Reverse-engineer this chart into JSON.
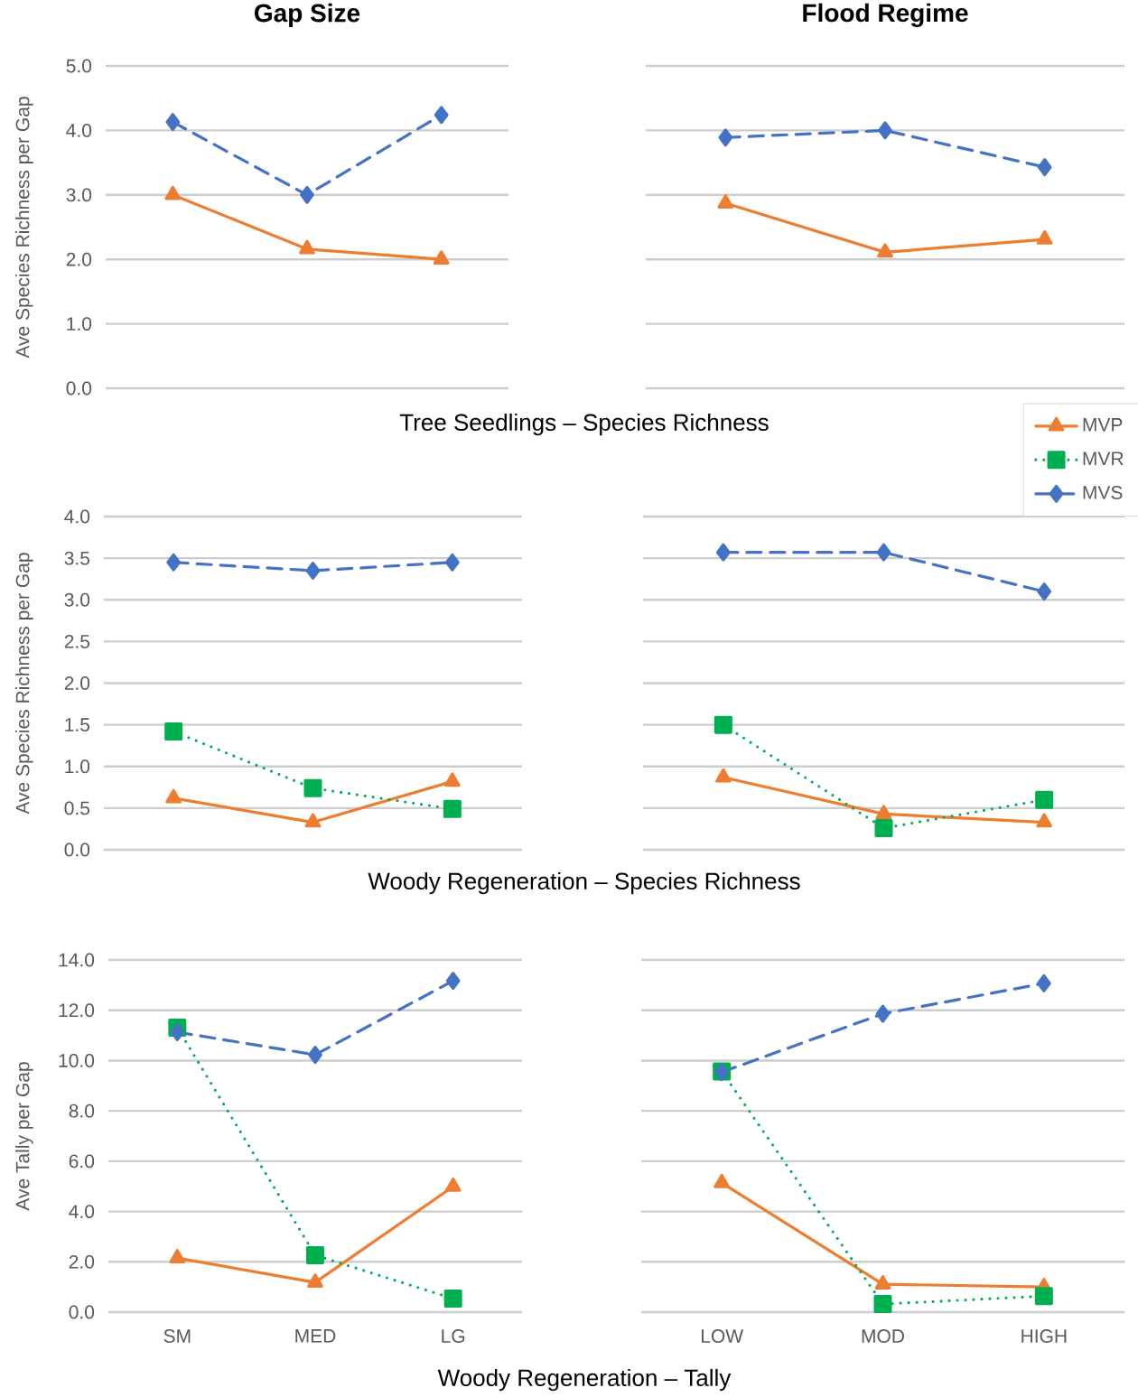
{
  "chart_data": [
    {
      "type": "line",
      "title": "Gap Size",
      "xlabel": "Tree Seedlings – Species Richness",
      "ylabel": "Ave Species Richness per Gap",
      "categories": [
        "SM",
        "MED",
        "LG"
      ],
      "ylim": [
        0,
        5
      ],
      "yticks": [
        {
          "value": 0,
          "label": "0.0"
        },
        {
          "value": 1,
          "label": "1.0"
        },
        {
          "value": 2,
          "label": "2.0"
        },
        {
          "value": 3,
          "label": "3.0"
        },
        {
          "value": 4,
          "label": "4.0"
        },
        {
          "value": 5,
          "label": "5.0"
        }
      ],
      "grid": "y",
      "tick_labels": "y",
      "series": [
        {
          "name": "MVP",
          "color": "#ed7d31",
          "marker": "triangle",
          "line_style": "solid",
          "values": [
            3.0,
            2.16,
            2.0
          ]
        },
        {
          "name": "MVS",
          "color": "#4472c4",
          "marker": "diamond",
          "line_style": "dashed",
          "values": [
            4.13,
            3.0,
            4.24
          ]
        }
      ]
    },
    {
      "type": "line",
      "title": "Flood Regime",
      "categories": [
        "LOW",
        "MOD",
        "HIGH"
      ],
      "ylim": [
        0,
        5
      ],
      "yticks": [
        {
          "value": 0,
          "label": null
        },
        {
          "value": 1,
          "label": null
        },
        {
          "value": 2,
          "label": null
        },
        {
          "value": 3,
          "label": null
        },
        {
          "value": 4,
          "label": null
        },
        {
          "value": 5,
          "label": null
        }
      ],
      "grid": "y",
      "tick_labels": false,
      "series": [
        {
          "name": "MVP",
          "color": "#ed7d31",
          "marker": "triangle",
          "line_style": "solid",
          "values": [
            2.87,
            2.11,
            2.31
          ]
        },
        {
          "name": "MVS",
          "color": "#4472c4",
          "marker": "diamond",
          "line_style": "dashed",
          "values": [
            3.89,
            4.0,
            3.43
          ]
        }
      ]
    },
    {
      "type": "line",
      "xlabel": "Woody Regeneration – Species Richness",
      "ylabel": "Ave Species Richness per Gap",
      "categories": [
        "SM",
        "MED",
        "LG"
      ],
      "ylim": [
        0,
        4
      ],
      "yticks": [
        {
          "value": 0,
          "label": "0.0"
        },
        {
          "value": 0.5,
          "label": "0.5"
        },
        {
          "value": 1,
          "label": "1.0"
        },
        {
          "value": 1.5,
          "label": "1.5"
        },
        {
          "value": 2,
          "label": "2.0"
        },
        {
          "value": 2.5,
          "label": "2.5"
        },
        {
          "value": 3,
          "label": "3.0"
        },
        {
          "value": 3.5,
          "label": "3.5"
        },
        {
          "value": 4,
          "label": "4.0"
        }
      ],
      "grid": "y",
      "tick_labels": "y",
      "series": [
        {
          "name": "MVP",
          "color": "#ed7d31",
          "marker": "triangle",
          "line_style": "solid",
          "values": [
            0.62,
            0.33,
            0.82
          ]
        },
        {
          "name": "MVR",
          "color": "#00b050",
          "marker": "square",
          "line_style": "dotted",
          "values": [
            1.42,
            0.74,
            0.49
          ]
        },
        {
          "name": "MVS",
          "color": "#4472c4",
          "marker": "diamond",
          "line_style": "dashed",
          "values": [
            3.45,
            3.35,
            3.45
          ]
        }
      ]
    },
    {
      "type": "line",
      "categories": [
        "LOW",
        "MOD",
        "HIGH"
      ],
      "ylim": [
        0,
        4
      ],
      "yticks": [
        {
          "value": 0,
          "label": null
        },
        {
          "value": 0.5,
          "label": null
        },
        {
          "value": 1,
          "label": null
        },
        {
          "value": 1.5,
          "label": null
        },
        {
          "value": 2,
          "label": null
        },
        {
          "value": 2.5,
          "label": null
        },
        {
          "value": 3,
          "label": null
        },
        {
          "value": 3.5,
          "label": null
        },
        {
          "value": 4,
          "label": null
        }
      ],
      "grid": "y",
      "tick_labels": false,
      "legend": "top right",
      "series": [
        {
          "name": "MVP",
          "color": "#ed7d31",
          "marker": "triangle",
          "line_style": "solid",
          "values": [
            0.87,
            0.43,
            0.33
          ]
        },
        {
          "name": "MVR",
          "color": "#00b050",
          "marker": "square",
          "line_style": "dotted",
          "values": [
            1.5,
            0.26,
            0.6
          ]
        },
        {
          "name": "MVS",
          "color": "#4472c4",
          "marker": "diamond",
          "line_style": "dashed",
          "values": [
            3.57,
            3.57,
            3.1
          ]
        }
      ]
    },
    {
      "type": "line",
      "xlabel": "Woody Regeneration – Tally",
      "ylabel": "Ave Tally per Gap",
      "categories": [
        "SM",
        "MED",
        "LG"
      ],
      "ylim": [
        0,
        14
      ],
      "yticks": [
        {
          "value": 0,
          "label": "0.0"
        },
        {
          "value": 2,
          "label": "2.0"
        },
        {
          "value": 4,
          "label": "4.0"
        },
        {
          "value": 6,
          "label": "6.0"
        },
        {
          "value": 8,
          "label": "8.0"
        },
        {
          "value": 10,
          "label": "10.0"
        },
        {
          "value": 12,
          "label": "12.0"
        },
        {
          "value": 14,
          "label": "14.0"
        }
      ],
      "grid": "y",
      "series": [
        {
          "name": "MVP",
          "color": "#ed7d31",
          "marker": "triangle",
          "line_style": "solid",
          "values": [
            2.15,
            1.18,
            4.99
          ]
        },
        {
          "name": "MVR",
          "color": "#00b050",
          "marker": "square",
          "line_style": "dotted",
          "values": [
            11.31,
            2.26,
            0.54
          ]
        },
        {
          "name": "MVS",
          "color": "#4472c4",
          "marker": "diamond",
          "line_style": "dashed",
          "values": [
            11.13,
            10.23,
            13.17
          ]
        }
      ]
    },
    {
      "type": "line",
      "categories": [
        "LOW",
        "MOD",
        "HIGH"
      ],
      "ylim": [
        0,
        14
      ],
      "yticks": [
        {
          "value": 0,
          "label": null
        },
        {
          "value": 2,
          "label": null
        },
        {
          "value": 4,
          "label": null
        },
        {
          "value": 6,
          "label": null
        },
        {
          "value": 8,
          "label": null
        },
        {
          "value": 10,
          "label": null
        },
        {
          "value": 12,
          "label": null
        },
        {
          "value": 14,
          "label": null
        }
      ],
      "grid": "y",
      "tick_labels": "x",
      "series": [
        {
          "name": "MVP",
          "color": "#ed7d31",
          "marker": "triangle",
          "line_style": "solid",
          "values": [
            5.14,
            1.11,
            1.0
          ]
        },
        {
          "name": "MVR",
          "color": "#00b050",
          "marker": "square",
          "line_style": "dotted",
          "values": [
            9.57,
            0.32,
            0.64
          ]
        },
        {
          "name": "MVS",
          "color": "#4472c4",
          "marker": "diamond",
          "line_style": "dashed",
          "values": [
            9.54,
            11.86,
            13.07
          ]
        }
      ]
    }
  ]
}
